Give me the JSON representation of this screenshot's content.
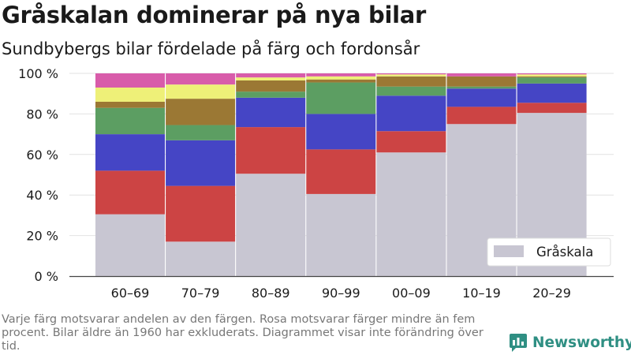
{
  "header": {
    "title": "Gråskalan dominerar på nya bilar",
    "subtitle": "Sundbybergs bilar fördelade på färg och fordonsår"
  },
  "footnote": "Varje färg motsvarar andelen av den färgen. Rosa motsvarar färger mindre än fem procent. Bilar äldre än 1960 har exkluderats. Diagrammet visar inte förändring över tid.",
  "brand": {
    "name": "Newsworthy",
    "icon": "newsworthy-logo-icon"
  },
  "chart_data": {
    "type": "bar",
    "stacked": true,
    "categories": [
      "60–69",
      "70–79",
      "80–89",
      "90–99",
      "00–09",
      "10–19",
      "20–29"
    ],
    "ylim": [
      0,
      100
    ],
    "yticks": [
      0,
      20,
      40,
      60,
      80,
      100
    ],
    "ytick_labels": [
      "0 %",
      "20 %",
      "40 %",
      "60 %",
      "80 %",
      "100 %"
    ],
    "grid": true,
    "legend": {
      "position": "bottom-right",
      "entries": [
        "Gråskala"
      ]
    },
    "series": [
      {
        "name": "Gråskala",
        "color": "#c8c6d2",
        "values": [
          30.5,
          17,
          50.5,
          40.5,
          61,
          75,
          80.5
        ]
      },
      {
        "color": "#cc4444",
        "values": [
          21.5,
          27.5,
          23,
          22,
          10.5,
          8.5,
          5
        ]
      },
      {
        "color": "#4545c5",
        "values": [
          18,
          22.5,
          14.5,
          17.5,
          17.5,
          9,
          9.5
        ]
      },
      {
        "color": "#5c9e62",
        "values": [
          13,
          7.5,
          3,
          15.5,
          4.5,
          1,
          3
        ]
      },
      {
        "color": "#9b7834",
        "values": [
          3,
          13,
          5.5,
          1.5,
          5,
          5,
          0.5
        ]
      },
      {
        "color": "#eef078",
        "values": [
          7,
          7,
          1.5,
          1.5,
          1,
          0,
          1
        ]
      },
      {
        "color": "#d85caa",
        "values": [
          7,
          5.5,
          2,
          1.5,
          0.5,
          1.5,
          0.5
        ]
      }
    ]
  }
}
